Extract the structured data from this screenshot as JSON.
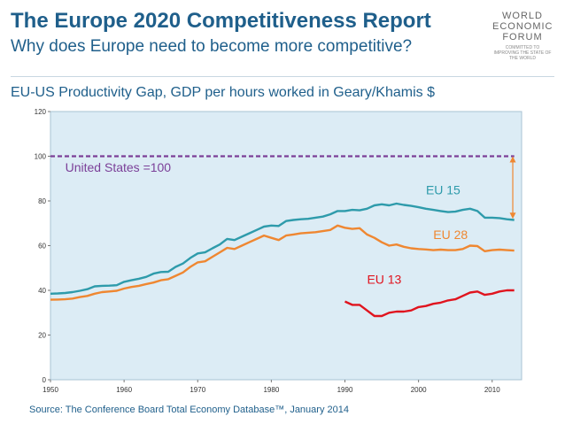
{
  "header": {
    "title": "The Europe 2020 Competitiveness Report",
    "subtitle": "Why does Europe need to become more competitive?"
  },
  "logo": {
    "name_lines": [
      "WORLD",
      "ECONOMIC",
      "FORUM"
    ],
    "tagline": "COMMITTED TO IMPROVING THE STATE OF THE WORLD"
  },
  "chart_title": "EU-US Productivity Gap, GDP per hours worked in Geary/Khamis $",
  "source": "Source: The Conference Board Total Economy Database™, January 2014",
  "colors": {
    "background": "#dcecf5",
    "us": "#7b3f98",
    "eu15": "#2e9bab",
    "eu28": "#ef8731",
    "eu13": "#e0141e",
    "arrow": "#ef8731"
  },
  "chart_data": {
    "type": "line",
    "title": "EU-US Productivity Gap, GDP per hours worked in Geary/Khamis $",
    "xlabel": "",
    "ylabel": "",
    "xlim": [
      1950,
      2014
    ],
    "ylim": [
      0,
      120
    ],
    "xticks": [
      1950,
      1960,
      1970,
      1980,
      1990,
      2000,
      2010
    ],
    "yticks": [
      0,
      20,
      40,
      60,
      80,
      100,
      120
    ],
    "grid": false,
    "series": [
      {
        "name": "United States =100",
        "key": "us",
        "style": "dashed",
        "x": [
          1950,
          2013
        ],
        "values": [
          100,
          100
        ]
      },
      {
        "name": "EU 15",
        "key": "eu15",
        "x": [
          1950,
          1951,
          1952,
          1953,
          1954,
          1955,
          1956,
          1957,
          1958,
          1959,
          1960,
          1961,
          1962,
          1963,
          1964,
          1965,
          1966,
          1967,
          1968,
          1969,
          1970,
          1971,
          1972,
          1973,
          1974,
          1975,
          1976,
          1977,
          1978,
          1979,
          1980,
          1981,
          1982,
          1983,
          1984,
          1985,
          1986,
          1987,
          1988,
          1989,
          1990,
          1991,
          1992,
          1993,
          1994,
          1995,
          1996,
          1997,
          1998,
          1999,
          2000,
          2001,
          2002,
          2003,
          2004,
          2005,
          2006,
          2007,
          2008,
          2009,
          2010,
          2011,
          2012,
          2013
        ],
        "values": [
          38.5,
          38.6,
          38.8,
          39.2,
          39.8,
          40.5,
          41.8,
          42.0,
          42.1,
          42.3,
          43.8,
          44.5,
          45.2,
          46.0,
          47.5,
          48.2,
          48.3,
          50.5,
          52.0,
          54.5,
          56.5,
          57.0,
          58.8,
          60.5,
          63.0,
          62.5,
          64.0,
          65.5,
          67.0,
          68.5,
          69.0,
          68.8,
          71.0,
          71.5,
          71.8,
          72.0,
          72.5,
          73.0,
          74.0,
          75.5,
          75.5,
          76.0,
          75.8,
          76.5,
          78.0,
          78.5,
          78.0,
          78.8,
          78.2,
          77.8,
          77.2,
          76.5,
          76.0,
          75.5,
          75.0,
          75.2,
          76.0,
          76.5,
          75.5,
          72.5,
          72.5,
          72.3,
          71.8,
          71.5
        ]
      },
      {
        "name": "EU 28",
        "key": "eu28",
        "x": [
          1950,
          1951,
          1952,
          1953,
          1954,
          1955,
          1956,
          1957,
          1958,
          1959,
          1960,
          1961,
          1962,
          1963,
          1964,
          1965,
          1966,
          1967,
          1968,
          1969,
          1970,
          1971,
          1972,
          1973,
          1974,
          1975,
          1976,
          1977,
          1978,
          1979,
          1980,
          1981,
          1982,
          1983,
          1984,
          1985,
          1986,
          1987,
          1988,
          1989,
          1990,
          1991,
          1992,
          1993,
          1994,
          1995,
          1996,
          1997,
          1998,
          1999,
          2000,
          2001,
          2002,
          2003,
          2004,
          2005,
          2006,
          2007,
          2008,
          2009,
          2010,
          2011,
          2012,
          2013
        ],
        "values": [
          35.8,
          35.9,
          36.0,
          36.3,
          37.0,
          37.5,
          38.5,
          39.2,
          39.5,
          39.8,
          40.8,
          41.5,
          42.0,
          42.8,
          43.5,
          44.5,
          45.0,
          46.5,
          48.0,
          50.5,
          52.5,
          53.0,
          55.0,
          57.0,
          59.0,
          58.5,
          60.0,
          61.5,
          63.0,
          64.5,
          63.5,
          62.5,
          64.5,
          65.0,
          65.5,
          65.8,
          66.0,
          66.5,
          67.0,
          69.0,
          68.0,
          67.5,
          67.8,
          65.0,
          63.5,
          61.5,
          60.0,
          60.5,
          59.5,
          58.8,
          58.5,
          58.3,
          58.0,
          58.2,
          58.0,
          58.0,
          58.5,
          60.0,
          59.8,
          57.5,
          58.0,
          58.2,
          58.0,
          57.8
        ]
      },
      {
        "name": "EU 13",
        "key": "eu13",
        "x": [
          1990,
          1991,
          1992,
          1993,
          1994,
          1995,
          1996,
          1997,
          1998,
          1999,
          2000,
          2001,
          2002,
          2003,
          2004,
          2005,
          2006,
          2007,
          2008,
          2009,
          2010,
          2011,
          2012,
          2013
        ],
        "values": [
          35.0,
          33.5,
          33.5,
          31.0,
          28.5,
          28.5,
          30.0,
          30.5,
          30.5,
          31.0,
          32.5,
          33.0,
          34.0,
          34.5,
          35.5,
          36.0,
          37.5,
          39.0,
          39.5,
          38.0,
          38.5,
          39.5,
          40.0,
          40.0
        ]
      }
    ],
    "annotations": [
      {
        "text": "United States =100",
        "key": "us",
        "x": 1952,
        "y": 93
      },
      {
        "text": "EU 15",
        "key": "eu15",
        "x": 2001,
        "y": 83
      },
      {
        "text": "EU 28",
        "key": "eu28",
        "x": 2002,
        "y": 63
      },
      {
        "text": "EU 13",
        "key": "eu13",
        "x": 1993,
        "y": 43
      }
    ],
    "gap_arrow": {
      "x": 2012.8,
      "from": 100,
      "to": 72
    }
  }
}
